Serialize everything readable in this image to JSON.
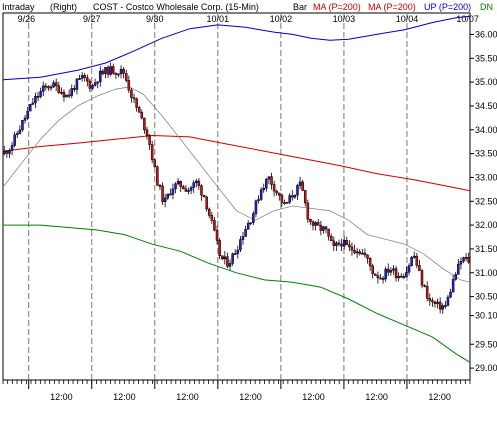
{
  "chart_data": {
    "type": "candlestick",
    "header": {
      "mode": "Intraday",
      "axis_side": "(Right)",
      "title": "COST - Costco Wholesale Corp. (15-Min)",
      "chart_style": "Bar",
      "indicators": [
        {
          "label": "MA (P=200)",
          "color": "#cc0000"
        },
        {
          "label": "MA (P=200)",
          "color": "#cc0000"
        },
        {
          "label": "UP (P=200)",
          "color": "#0000cc"
        },
        {
          "label": "DN",
          "color": "#008000"
        }
      ]
    },
    "x_range": [
      0,
      100
    ],
    "ylim": [
      28.75,
      36.45
    ],
    "y_ticks": [
      29.0,
      29.5,
      30.1,
      30.5,
      31.0,
      31.5,
      32.0,
      32.5,
      33.0,
      33.5,
      34.0,
      34.5,
      35.0,
      35.5,
      36.0
    ],
    "y_tick_labels": [
      "29.00",
      "29.50",
      "30.10",
      "30.50",
      "31.00",
      "31.50",
      "32.00",
      "32.50",
      "33.00",
      "33.50",
      "34.00",
      "34.50",
      "35.00",
      "35.50",
      "36.00"
    ],
    "date_labels": [
      {
        "x": 5,
        "text": "9/26"
      },
      {
        "x": 19,
        "text": "9/27"
      },
      {
        "x": 32.5,
        "text": "9/30"
      },
      {
        "x": 46,
        "text": "10/01"
      },
      {
        "x": 59.5,
        "text": "10/02"
      },
      {
        "x": 73,
        "text": "10/03"
      },
      {
        "x": 86.5,
        "text": "10/04"
      },
      {
        "x": 99.5,
        "text": "10/07"
      }
    ],
    "day_dividers": [
      5.5,
      19,
      32.5,
      46,
      59.5,
      73,
      86.5
    ],
    "time_labels": [
      {
        "x": 12.5,
        "text": "12:00"
      },
      {
        "x": 26,
        "text": "12:00"
      },
      {
        "x": 39.5,
        "text": "12:00"
      },
      {
        "x": 53,
        "text": "12:00"
      },
      {
        "x": 66.5,
        "text": "12:00"
      },
      {
        "x": 80,
        "text": "12:00"
      },
      {
        "x": 93.5,
        "text": "12:00"
      }
    ],
    "x_tick_count": 100,
    "colors": {
      "up": "#2222cc",
      "down": "#cc1111",
      "ma_thin": "#888888",
      "ma_red": "#cc0000",
      "upper_band": "#0000bb",
      "lower_band": "#008000",
      "divider": "#777777"
    },
    "price_series": [
      {
        "x": 0.0,
        "v": 33.5
      },
      {
        "x": 1.7,
        "v": 33.65
      },
      {
        "x": 3.4,
        "v": 34.0
      },
      {
        "x": 5.2,
        "v": 34.35
      },
      {
        "x": 6.5,
        "v": 34.6
      },
      {
        "x": 8.6,
        "v": 34.85
      },
      {
        "x": 10.3,
        "v": 34.95
      },
      {
        "x": 12.1,
        "v": 34.85
      },
      {
        "x": 13.8,
        "v": 34.7
      },
      {
        "x": 15.5,
        "v": 34.95
      },
      {
        "x": 17.2,
        "v": 35.1
      },
      {
        "x": 19.0,
        "v": 34.9
      },
      {
        "x": 20.7,
        "v": 35.15
      },
      {
        "x": 22.4,
        "v": 35.25
      },
      {
        "x": 24.1,
        "v": 35.25
      },
      {
        "x": 25.9,
        "v": 35.2
      },
      {
        "x": 27.6,
        "v": 34.7
      },
      {
        "x": 29.3,
        "v": 34.3
      },
      {
        "x": 31.0,
        "v": 33.9
      },
      {
        "x": 32.8,
        "v": 33.0
      },
      {
        "x": 34.5,
        "v": 32.45
      },
      {
        "x": 36.2,
        "v": 32.8
      },
      {
        "x": 37.9,
        "v": 32.85
      },
      {
        "x": 39.7,
        "v": 32.75
      },
      {
        "x": 41.4,
        "v": 32.9
      },
      {
        "x": 43.1,
        "v": 32.6
      },
      {
        "x": 44.8,
        "v": 32.0
      },
      {
        "x": 46.6,
        "v": 31.3
      },
      {
        "x": 48.3,
        "v": 31.2
      },
      {
        "x": 50.0,
        "v": 31.5
      },
      {
        "x": 51.7,
        "v": 31.9
      },
      {
        "x": 53.4,
        "v": 32.2
      },
      {
        "x": 55.2,
        "v": 32.75
      },
      {
        "x": 56.9,
        "v": 33.0
      },
      {
        "x": 58.6,
        "v": 32.7
      },
      {
        "x": 60.3,
        "v": 32.4
      },
      {
        "x": 62.1,
        "v": 32.65
      },
      {
        "x": 63.8,
        "v": 32.85
      },
      {
        "x": 65.5,
        "v": 32.1
      },
      {
        "x": 67.2,
        "v": 31.95
      },
      {
        "x": 69.0,
        "v": 31.9
      },
      {
        "x": 70.7,
        "v": 31.5
      },
      {
        "x": 72.4,
        "v": 31.65
      },
      {
        "x": 74.1,
        "v": 31.5
      },
      {
        "x": 75.9,
        "v": 31.5
      },
      {
        "x": 77.6,
        "v": 31.35
      },
      {
        "x": 79.3,
        "v": 31.0
      },
      {
        "x": 81.0,
        "v": 30.9
      },
      {
        "x": 82.8,
        "v": 31.1
      },
      {
        "x": 84.5,
        "v": 30.95
      },
      {
        "x": 86.2,
        "v": 31.0
      },
      {
        "x": 87.9,
        "v": 31.4
      },
      {
        "x": 89.7,
        "v": 30.8
      },
      {
        "x": 91.4,
        "v": 30.4
      },
      {
        "x": 93.1,
        "v": 30.3
      },
      {
        "x": 94.8,
        "v": 30.3
      },
      {
        "x": 96.6,
        "v": 30.9
      },
      {
        "x": 98.3,
        "v": 31.3
      },
      {
        "x": 100.0,
        "v": 31.25
      }
    ],
    "ma_thin": [
      {
        "x": 0,
        "v": 32.8
      },
      {
        "x": 4,
        "v": 33.3
      },
      {
        "x": 8,
        "v": 33.8
      },
      {
        "x": 12,
        "v": 34.2
      },
      {
        "x": 16,
        "v": 34.5
      },
      {
        "x": 20,
        "v": 34.7
      },
      {
        "x": 24,
        "v": 34.85
      },
      {
        "x": 27,
        "v": 34.9
      },
      {
        "x": 30,
        "v": 34.75
      },
      {
        "x": 34,
        "v": 34.3
      },
      {
        "x": 38,
        "v": 33.8
      },
      {
        "x": 42,
        "v": 33.3
      },
      {
        "x": 46,
        "v": 32.8
      },
      {
        "x": 50,
        "v": 32.3
      },
      {
        "x": 54,
        "v": 32.1
      },
      {
        "x": 58,
        "v": 32.3
      },
      {
        "x": 62,
        "v": 32.4
      },
      {
        "x": 66,
        "v": 32.35
      },
      {
        "x": 70,
        "v": 32.3
      },
      {
        "x": 74,
        "v": 32.1
      },
      {
        "x": 78,
        "v": 31.8
      },
      {
        "x": 82,
        "v": 31.7
      },
      {
        "x": 86,
        "v": 31.6
      },
      {
        "x": 90,
        "v": 31.4
      },
      {
        "x": 94,
        "v": 31.1
      },
      {
        "x": 98,
        "v": 30.85
      },
      {
        "x": 100,
        "v": 30.8
      }
    ],
    "ma_red": [
      {
        "x": 0,
        "v": 33.55
      },
      {
        "x": 8,
        "v": 33.65
      },
      {
        "x": 16,
        "v": 33.72
      },
      {
        "x": 24,
        "v": 33.8
      },
      {
        "x": 32,
        "v": 33.88
      },
      {
        "x": 40,
        "v": 33.85
      },
      {
        "x": 48,
        "v": 33.7
      },
      {
        "x": 56,
        "v": 33.55
      },
      {
        "x": 64,
        "v": 33.4
      },
      {
        "x": 72,
        "v": 33.25
      },
      {
        "x": 80,
        "v": 33.08
      },
      {
        "x": 88,
        "v": 32.95
      },
      {
        "x": 96,
        "v": 32.8
      },
      {
        "x": 100,
        "v": 32.72
      }
    ],
    "upper_band": [
      {
        "x": 0,
        "v": 35.05
      },
      {
        "x": 8,
        "v": 35.1
      },
      {
        "x": 16,
        "v": 35.25
      },
      {
        "x": 22,
        "v": 35.4
      },
      {
        "x": 28,
        "v": 35.65
      },
      {
        "x": 34,
        "v": 35.92
      },
      {
        "x": 40,
        "v": 36.12
      },
      {
        "x": 46,
        "v": 36.2
      },
      {
        "x": 52,
        "v": 36.15
      },
      {
        "x": 58,
        "v": 36.05
      },
      {
        "x": 62,
        "v": 36.0
      },
      {
        "x": 66,
        "v": 35.92
      },
      {
        "x": 70,
        "v": 35.88
      },
      {
        "x": 74,
        "v": 35.9
      },
      {
        "x": 80,
        "v": 36.0
      },
      {
        "x": 86,
        "v": 36.1
      },
      {
        "x": 92,
        "v": 36.25
      },
      {
        "x": 97,
        "v": 36.35
      },
      {
        "x": 100,
        "v": 36.38
      }
    ],
    "lower_band": [
      {
        "x": 0,
        "v": 32.0
      },
      {
        "x": 8,
        "v": 32.0
      },
      {
        "x": 14,
        "v": 31.95
      },
      {
        "x": 20,
        "v": 31.9
      },
      {
        "x": 26,
        "v": 31.8
      },
      {
        "x": 32,
        "v": 31.6
      },
      {
        "x": 38,
        "v": 31.45
      },
      {
        "x": 44,
        "v": 31.2
      },
      {
        "x": 50,
        "v": 31.0
      },
      {
        "x": 56,
        "v": 30.85
      },
      {
        "x": 62,
        "v": 30.8
      },
      {
        "x": 68,
        "v": 30.7
      },
      {
        "x": 74,
        "v": 30.45
      },
      {
        "x": 80,
        "v": 30.15
      },
      {
        "x": 86,
        "v": 29.9
      },
      {
        "x": 92,
        "v": 29.65
      },
      {
        "x": 97,
        "v": 29.3
      },
      {
        "x": 100,
        "v": 29.12
      }
    ]
  }
}
